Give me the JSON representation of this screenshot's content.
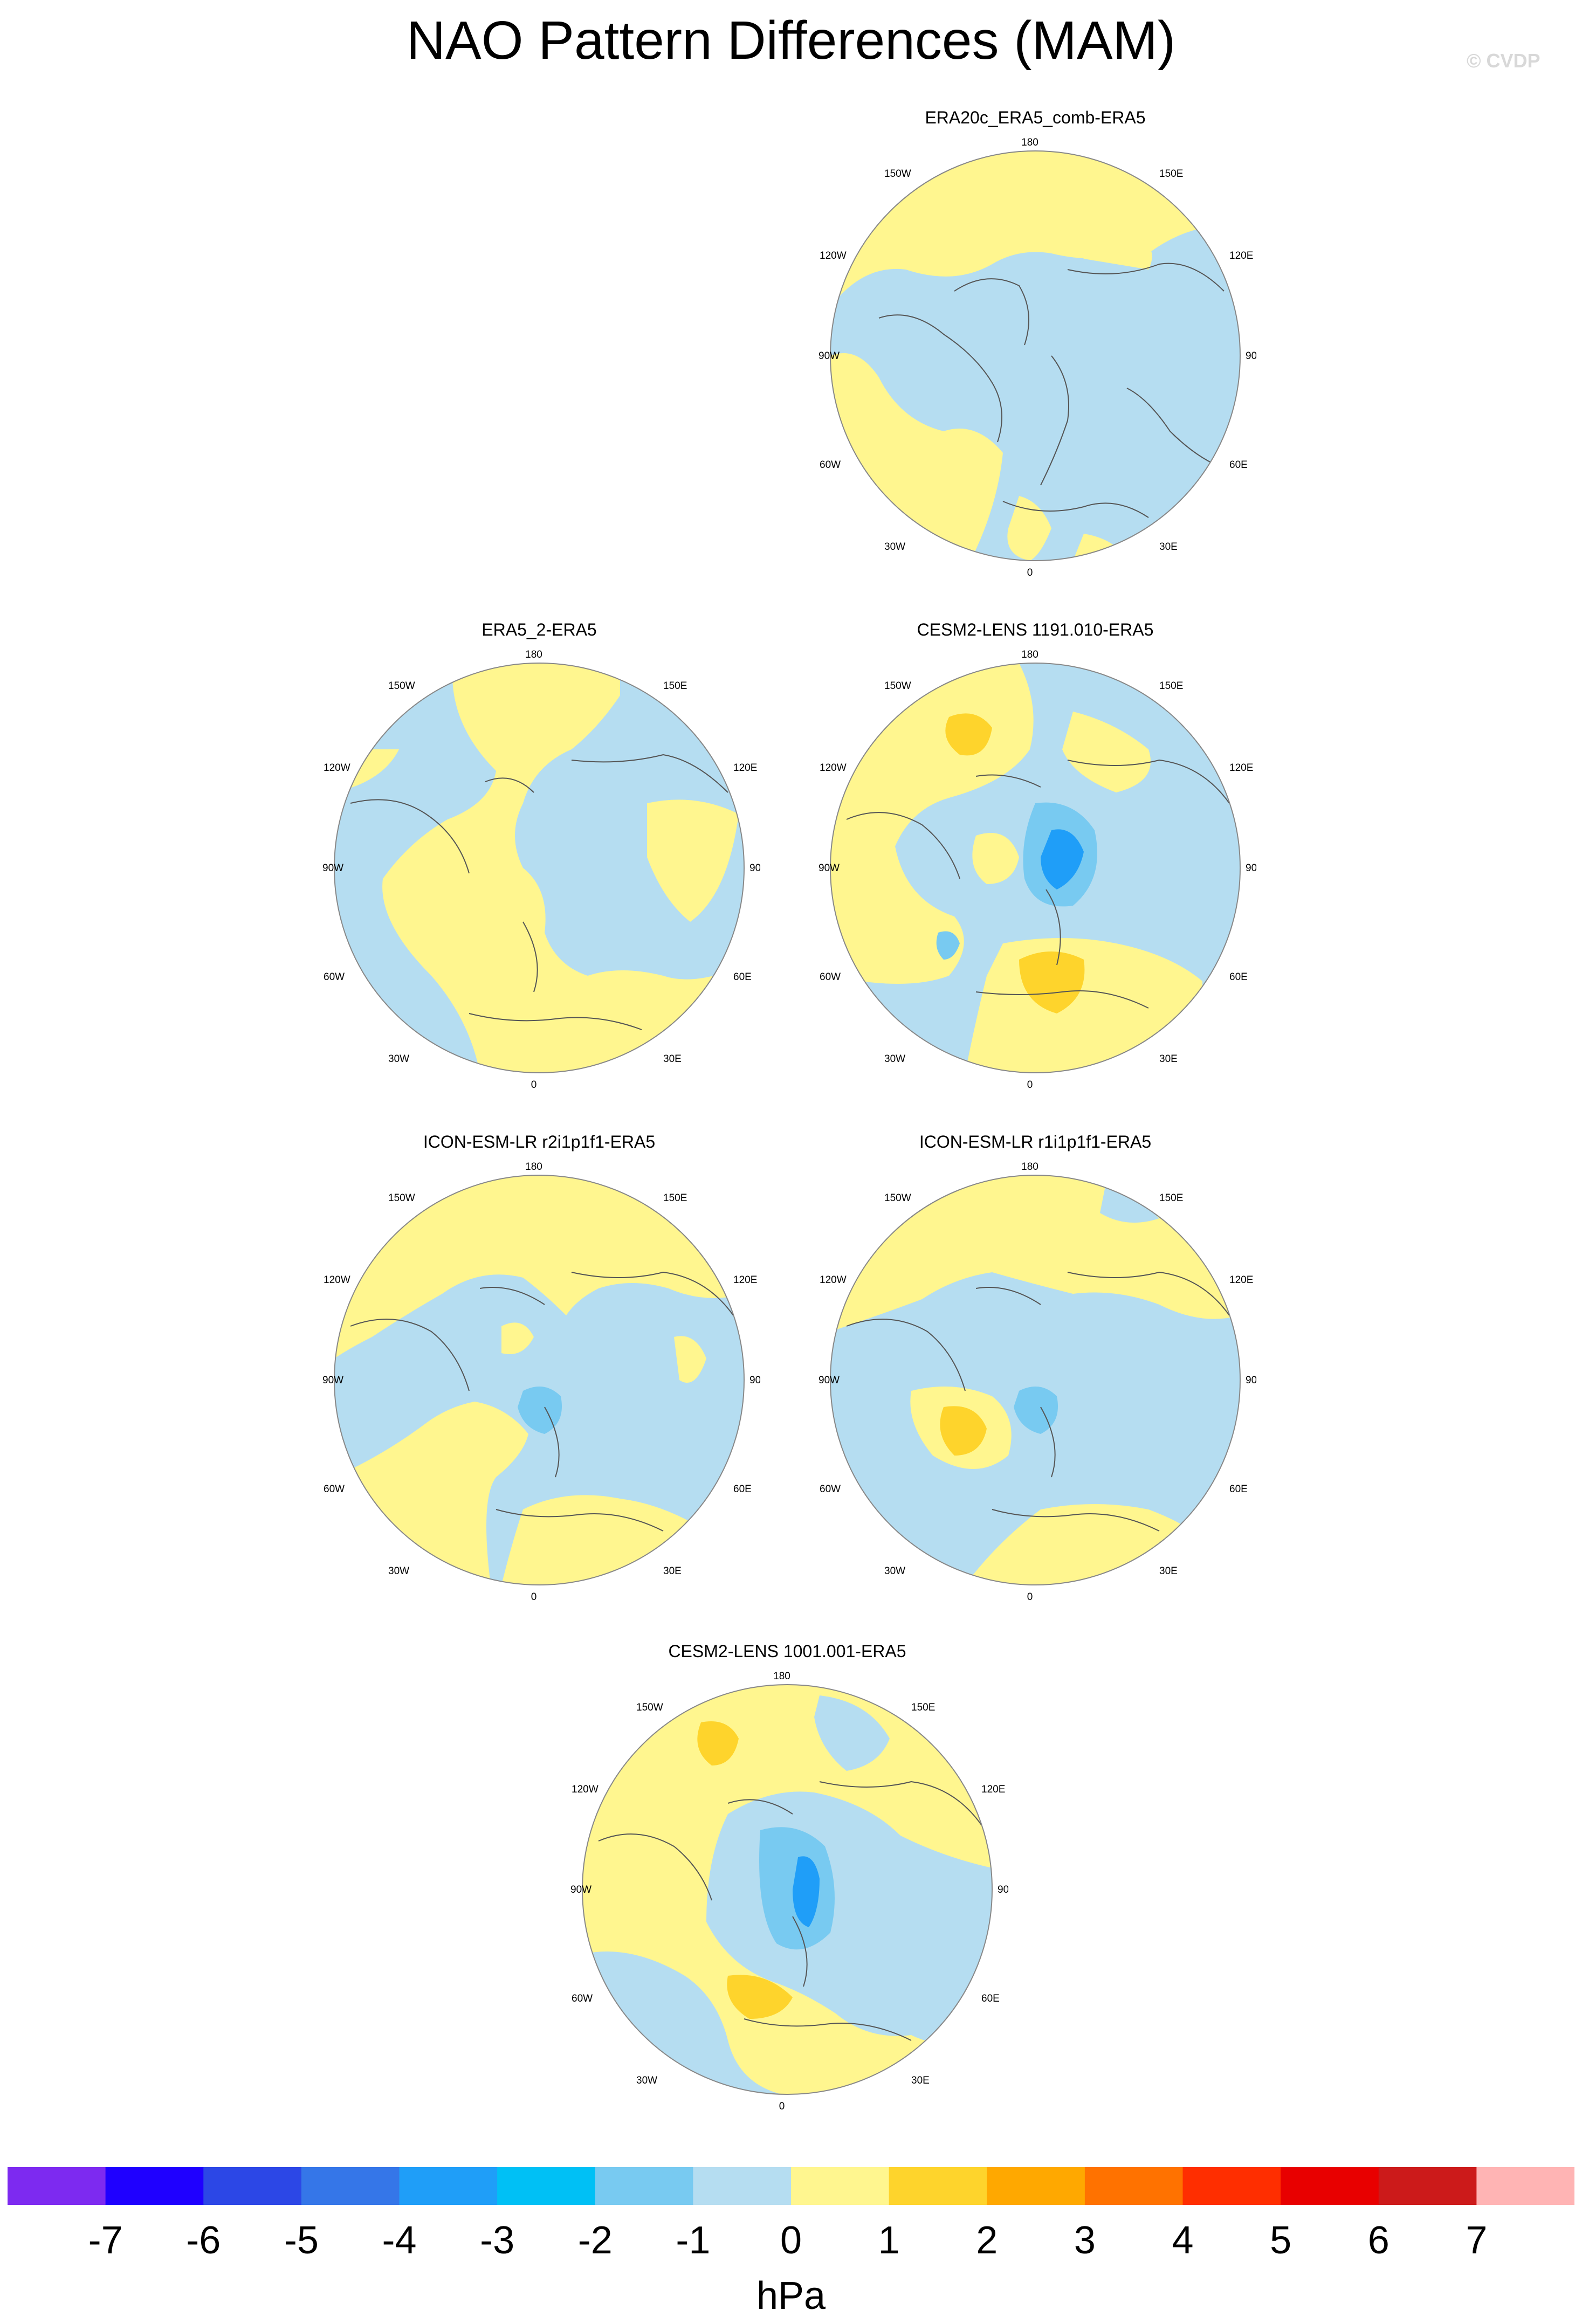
{
  "title": "NAO Pattern Differences (MAM)",
  "watermark": "© CVDP",
  "colors": {
    "land_outline": "#555555",
    "ocean_circle": "#b5ddf1"
  },
  "lon_labels": {
    "top": "180",
    "bottom": "0",
    "left": "90W",
    "right": "90E",
    "upper_left_1": "150W",
    "upper_left_2": "120W",
    "upper_right_1": "150E",
    "upper_right_2": "120E",
    "lower_left_1": "60W",
    "lower_left_2": "30W",
    "lower_right_1": "60E",
    "lower_right_2": "30E"
  },
  "panels": [
    {
      "id": "era20c",
      "title": "ERA20c_ERA5_comb-ERA5",
      "dominant": "mixed",
      "anomalies": [
        {
          "sign": "neg",
          "level": -0.5,
          "label": "central Arctic / Eurasia (-1 to 0)"
        },
        {
          "sign": "pos",
          "level": 0.5,
          "label": "North Pacific / Atlantic (0 to 1)"
        }
      ]
    },
    {
      "id": "era5_2",
      "title": "ERA5_2-ERA5",
      "dominant": "mixed",
      "anomalies": [
        {
          "sign": "pos",
          "level": 0.5,
          "label": "North America / Atlantic (0 to 1)"
        },
        {
          "sign": "neg",
          "level": -0.5,
          "label": "Siberia / Pacific (-1 to 0)"
        }
      ]
    },
    {
      "id": "cesm1191",
      "title": "CESM2-LENS 1191.010-ERA5",
      "dominant": "dipole",
      "anomalies": [
        {
          "sign": "neg",
          "level": -2.5,
          "label": "Arctic / Scandinavia (-3 to -2)"
        },
        {
          "sign": "pos",
          "level": 1.5,
          "label": "Europe / Mediterranean (1 to 2)"
        },
        {
          "sign": "pos",
          "level": 1.5,
          "label": "North Pacific (1 to 2)"
        }
      ]
    },
    {
      "id": "icon_r2",
      "title": "ICON-ESM-LR r2i1p1f1-ERA5",
      "dominant": "mixed",
      "anomalies": [
        {
          "sign": "neg",
          "level": -1.5,
          "label": "Scandinavia (-2 to -1)"
        },
        {
          "sign": "pos",
          "level": 0.5,
          "label": "Pacific / Europe (0 to 1)"
        }
      ]
    },
    {
      "id": "icon_r1",
      "title": "ICON-ESM-LR r1i1p1f1-ERA5",
      "dominant": "mixed",
      "anomalies": [
        {
          "sign": "neg",
          "level": -1.5,
          "label": "Scandinavia (-2 to -1)"
        },
        {
          "sign": "pos",
          "level": 1.5,
          "label": "North Atlantic (1 to 2)"
        }
      ]
    },
    {
      "id": "cesm1001",
      "title": "CESM2-LENS 1001.001-ERA5",
      "dominant": "dipole",
      "anomalies": [
        {
          "sign": "neg",
          "level": -2.5,
          "label": "Arctic / Scandinavia (-3 to -2)"
        },
        {
          "sign": "pos",
          "level": 1.5,
          "label": "Western Europe (1 to 2)"
        },
        {
          "sign": "pos",
          "level": 1.5,
          "label": "North Pacific (1 to 2)"
        }
      ]
    }
  ],
  "colorbar": {
    "unit": "hPa",
    "labels": [
      "-7",
      "-6",
      "-5",
      "-4",
      "-3",
      "-2",
      "-1",
      "0",
      "1",
      "2",
      "3",
      "4",
      "5",
      "6",
      "7"
    ],
    "colors": [
      "#7d2af0",
      "#1f00ff",
      "#2c47e6",
      "#3576e8",
      "#1f9ef8",
      "#00c0f5",
      "#78caf1",
      "#b5ddf1",
      "#fff68f",
      "#fed42c",
      "#ffa800",
      "#ff7200",
      "#ff2e00",
      "#e80000",
      "#cc1a1a",
      "#ffb4b4"
    ]
  }
}
